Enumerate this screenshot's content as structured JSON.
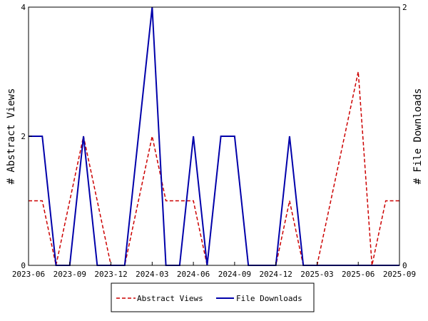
{
  "chart_data": {
    "type": "line",
    "x": [
      "2023-06",
      "2023-07",
      "2023-08",
      "2023-09",
      "2023-10",
      "2023-11",
      "2023-12",
      "2024-01",
      "2024-02",
      "2024-03",
      "2024-04",
      "2024-05",
      "2024-06",
      "2024-07",
      "2024-08",
      "2024-09",
      "2024-10",
      "2024-11",
      "2024-12",
      "2025-01",
      "2025-02",
      "2025-03",
      "2025-04",
      "2025-05",
      "2025-06",
      "2025-07",
      "2025-08",
      "2025-09"
    ],
    "x_ticks": [
      "2023-06",
      "2023-09",
      "2023-12",
      "2024-03",
      "2024-06",
      "2024-09",
      "2024-12",
      "2025-03",
      "2025-06",
      "2025-09"
    ],
    "series": [
      {
        "name": "Abstract Views",
        "axis": "left",
        "color": "#cc0000",
        "style": "dashed",
        "values": [
          1,
          1,
          0,
          1,
          2,
          1,
          0,
          0,
          1,
          2,
          1,
          1,
          1,
          0,
          2,
          2,
          0,
          0,
          0,
          1,
          0,
          0,
          1,
          2,
          3,
          0,
          1,
          1
        ]
      },
      {
        "name": "File Downloads",
        "axis": "right",
        "color": "#0000aa",
        "style": "solid",
        "values": [
          1,
          1,
          0,
          0,
          1,
          0,
          0,
          0,
          1,
          2,
          0,
          0,
          1,
          0,
          1,
          1,
          0,
          0,
          0,
          1,
          0,
          0,
          0,
          0,
          0,
          0,
          0,
          0
        ]
      }
    ],
    "ylabel_left": "# Abstract Views",
    "ylabel_right": "# File Downloads",
    "ylim_left": [
      0,
      4
    ],
    "ylim_right": [
      0,
      2
    ],
    "yticks_left": [
      0,
      2,
      4
    ],
    "yticks_right": [
      0,
      2
    ],
    "legend_position": "bottom",
    "grid": false
  }
}
